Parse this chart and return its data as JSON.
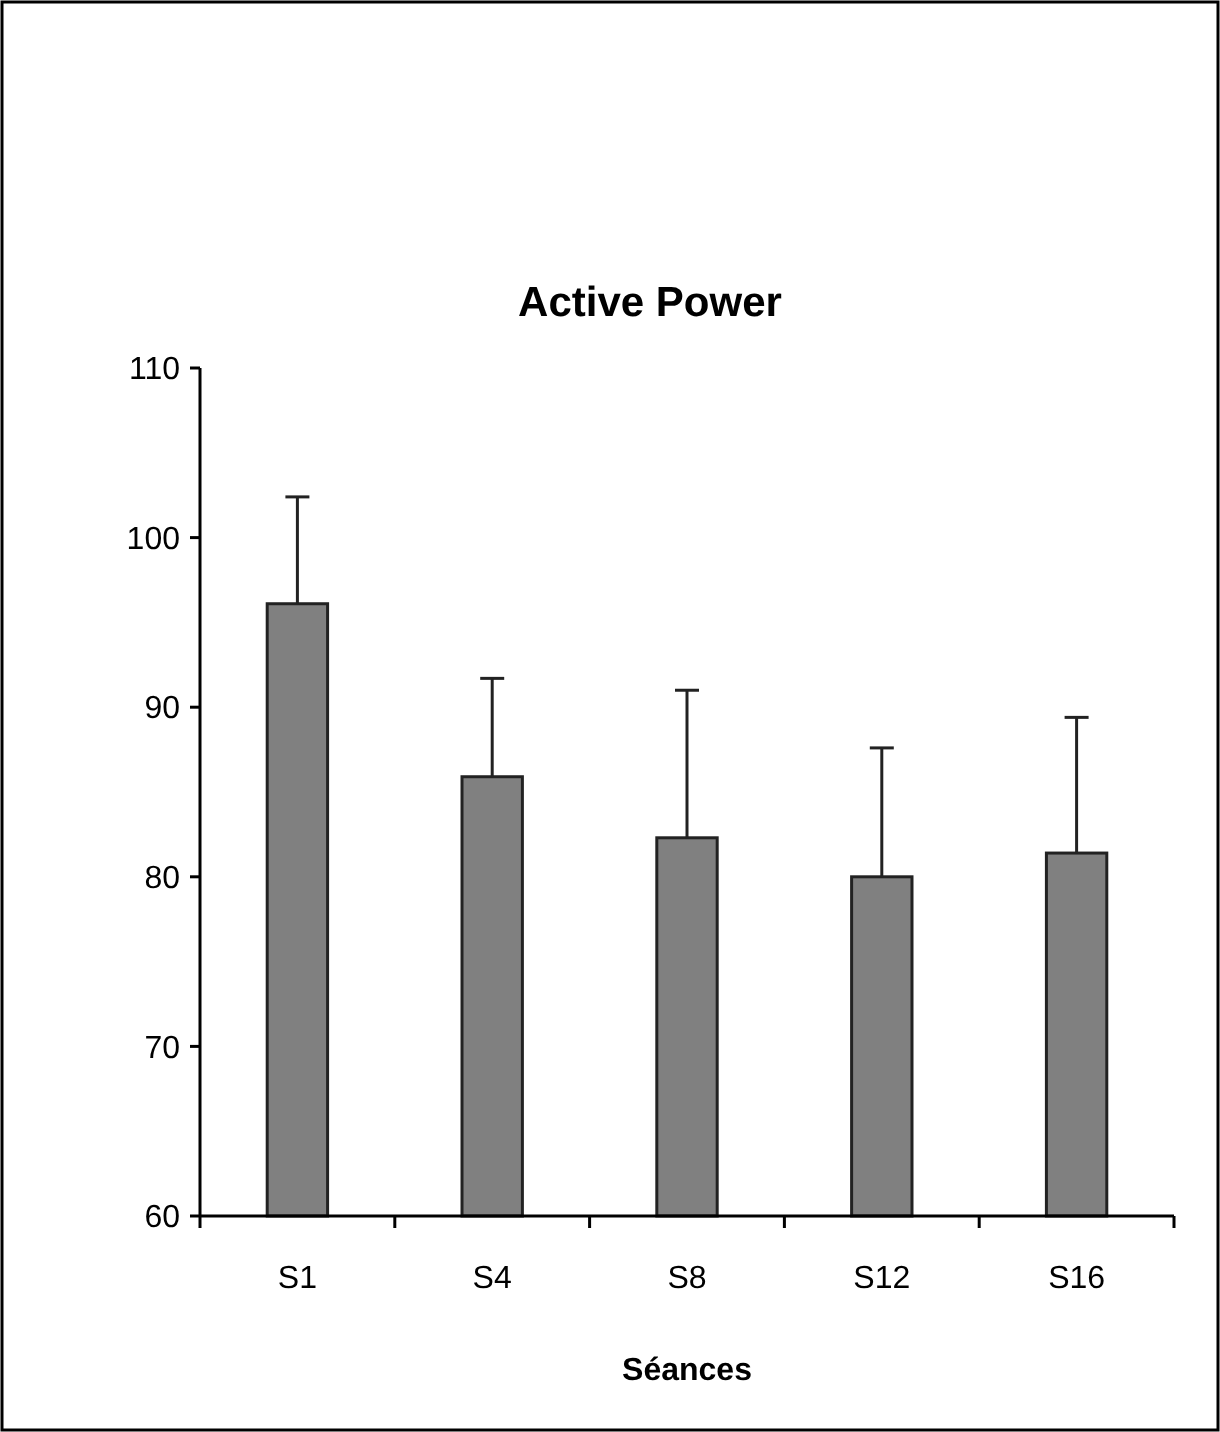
{
  "chart_data": {
    "type": "bar",
    "title": "Active Power",
    "xlabel": "Séances",
    "categories": [
      "S1",
      "S4",
      "S8",
      "S12",
      "S16"
    ],
    "values": [
      96.1,
      85.9,
      82.3,
      80.0,
      81.4
    ],
    "errors": [
      [
        96.1,
        102.4
      ],
      [
        85.9,
        91.7
      ],
      [
        82.3,
        91.0
      ],
      [
        80.0,
        87.6
      ],
      [
        81.4,
        89.4
      ]
    ],
    "color": "#808080",
    "ylim": [
      60,
      110
    ],
    "yticks": [
      60,
      70,
      80,
      90,
      100,
      110
    ],
    "grid": false
  }
}
